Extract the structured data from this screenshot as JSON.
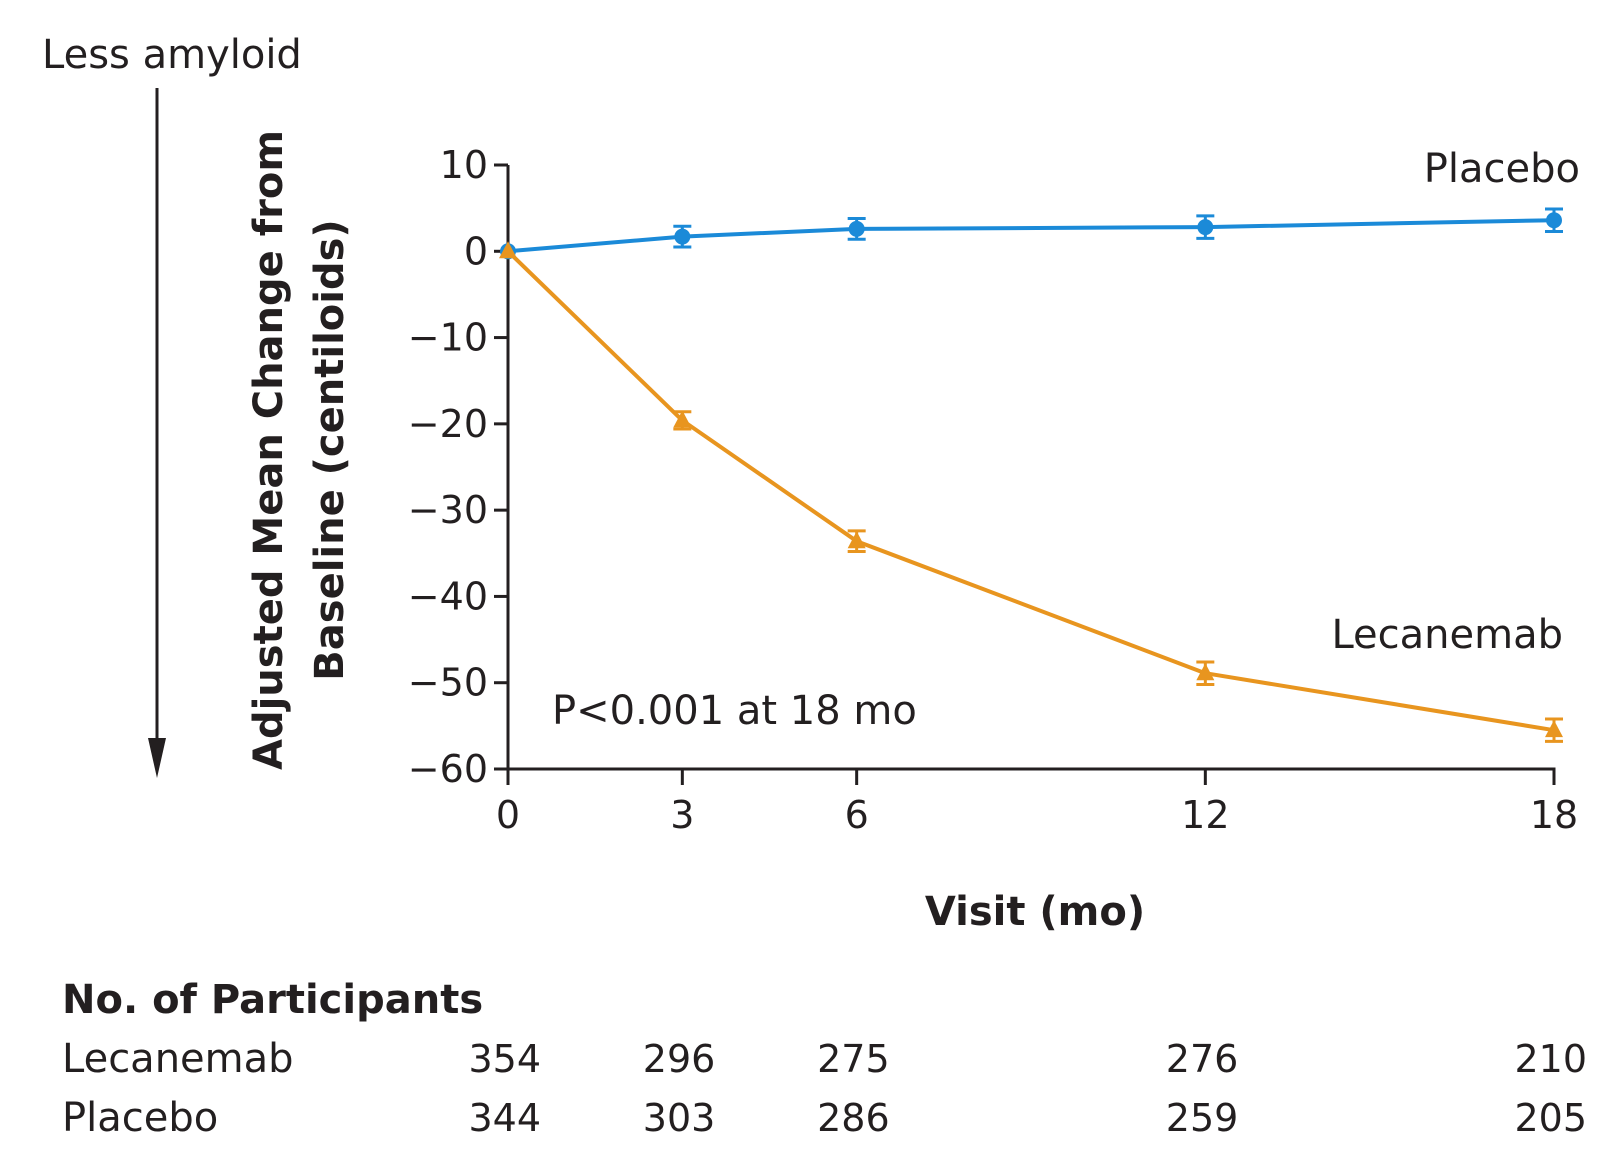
{
  "direction_note": "Less amyloid",
  "annotation": "P<0.001 at 18 mo",
  "colors": {
    "placebo": "#1b8ad8",
    "lecanemab": "#e8951f",
    "axis": "#231f20"
  },
  "chart_data": {
    "type": "line",
    "xlabel": "Visit (mo)",
    "ylabel_lines": [
      "Adjusted Mean Change from",
      "Baseline (centiloids)"
    ],
    "xlim": [
      0,
      18
    ],
    "ylim": [
      -60,
      10
    ],
    "xticks": [
      0,
      3,
      6,
      12,
      18
    ],
    "yticks": [
      10,
      0,
      -10,
      -20,
      -30,
      -40,
      -50,
      -60
    ],
    "ytick_labels": [
      "10",
      "0",
      "−10",
      "−20",
      "−30",
      "−40",
      "−50",
      "−60"
    ],
    "x": [
      0,
      3,
      6,
      12,
      18
    ],
    "series": [
      {
        "name": "Placebo",
        "marker": "circle",
        "color": "#1b8ad8",
        "values": [
          0,
          1.7,
          2.6,
          2.8,
          3.6
        ],
        "errors": [
          0,
          1.2,
          1.2,
          1.3,
          1.3
        ]
      },
      {
        "name": "Lecanemab",
        "marker": "triangle",
        "color": "#e8951f",
        "values": [
          0,
          -19.6,
          -33.6,
          -48.9,
          -55.5
        ],
        "errors": [
          0,
          1.0,
          1.2,
          1.3,
          1.3
        ]
      }
    ],
    "participants": {
      "title": "No. of Participants",
      "rows": [
        {
          "label": "Lecanemab",
          "values": [
            "354",
            "296",
            "275",
            "276",
            "210"
          ]
        },
        {
          "label": "Placebo",
          "values": [
            "344",
            "303",
            "286",
            "259",
            "205"
          ]
        }
      ]
    }
  }
}
